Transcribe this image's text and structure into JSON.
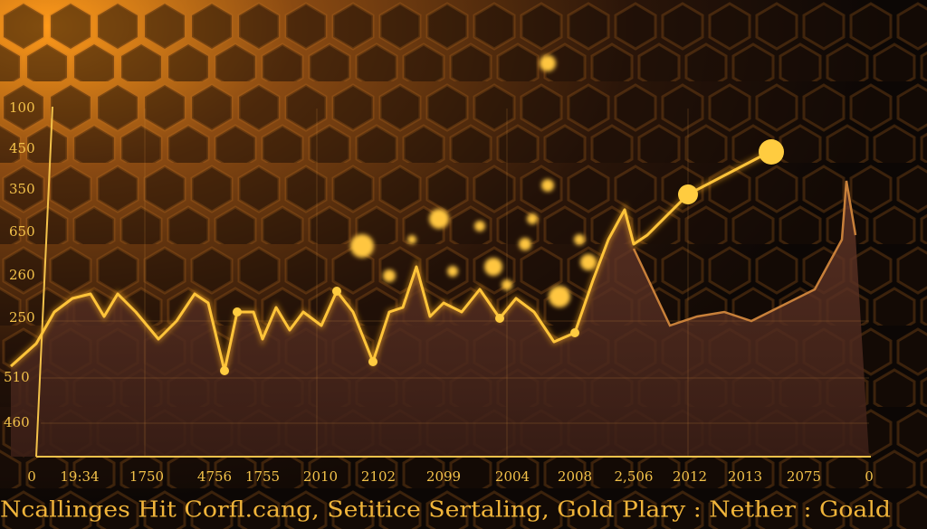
{
  "y_axis_labels": [
    "100",
    "450",
    "350",
    "650",
    "260",
    "250",
    "510",
    "460"
  ],
  "x_axis_labels": [
    "0",
    "19:34",
    "1750",
    "4756",
    "1755",
    "2010",
    "2102",
    "2099",
    "2004",
    "2008",
    "2,506",
    "2012",
    "2013",
    "2075",
    "0"
  ],
  "caption": "Ncallinges Hit Corfl.cang, Setitice Sertaling, Gold Plary : Nether : Goald"
}
